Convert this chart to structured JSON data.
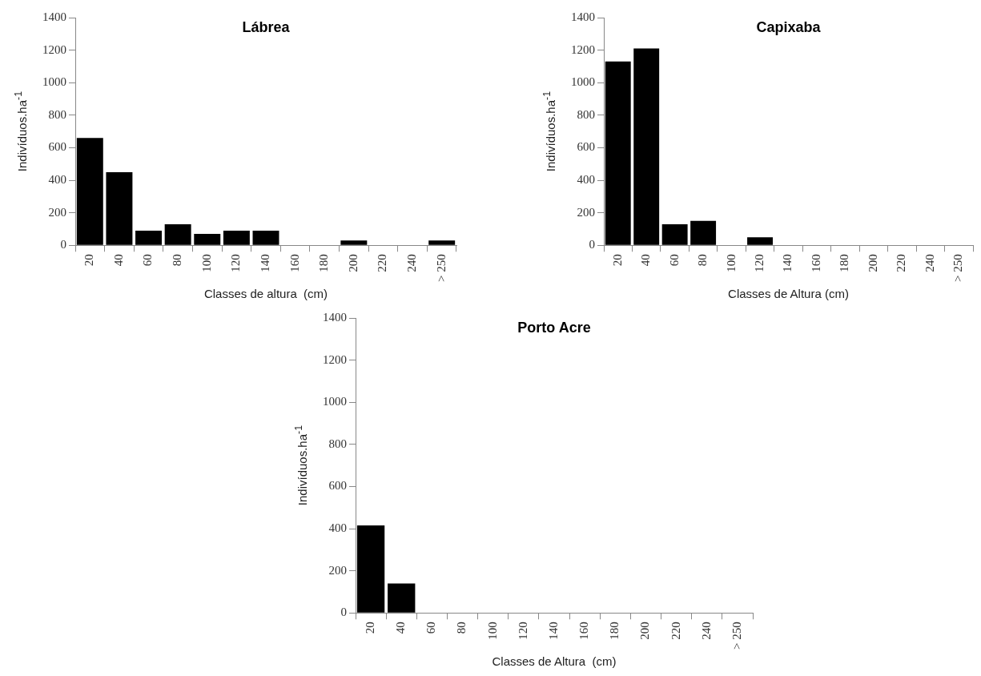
{
  "chart_data": [
    {
      "type": "bar",
      "title": "Lábrea",
      "xlabel": "Classes de altura  (cm)",
      "ylabel": "Indivíduos.ha$^{-1}$",
      "categories": [
        "20",
        "40",
        "60",
        "80",
        "100",
        "120",
        "140",
        "160",
        "180",
        "200",
        "220",
        "240",
        "> 250"
      ],
      "values": [
        660,
        450,
        90,
        130,
        70,
        90,
        90,
        0,
        0,
        30,
        0,
        0,
        30
      ],
      "color": "#000000",
      "ylim": [
        0,
        1400
      ],
      "yticks": [
        0,
        200,
        400,
        600,
        800,
        1000,
        1200,
        1400
      ]
    },
    {
      "type": "bar",
      "title": "Capixaba",
      "xlabel": "Classes de Altura (cm)",
      "ylabel": "Indivíduos.ha$^{-1}$",
      "categories": [
        "20",
        "40",
        "60",
        "80",
        "100",
        "120",
        "140",
        "160",
        "180",
        "200",
        "220",
        "240",
        "> 250"
      ],
      "values": [
        1130,
        1210,
        130,
        150,
        0,
        50,
        0,
        0,
        0,
        0,
        0,
        0,
        0
      ],
      "color": "#000000",
      "ylim": [
        0,
        1400
      ],
      "yticks": [
        0,
        200,
        400,
        600,
        800,
        1000,
        1200,
        1400
      ]
    },
    {
      "type": "bar",
      "title": "Porto Acre",
      "xlabel": "Classes de Altura  (cm)",
      "ylabel": "Indivíduos.ha$^{-1}$",
      "categories": [
        "20",
        "40",
        "60",
        "80",
        "100",
        "120",
        "140",
        "160",
        "180",
        "200",
        "220",
        "240",
        "> 250"
      ],
      "values": [
        415,
        140,
        0,
        0,
        0,
        0,
        0,
        0,
        0,
        0,
        0,
        0,
        0
      ],
      "color": "#000000",
      "ylim": [
        0,
        1400
      ],
      "yticks": [
        0,
        200,
        400,
        600,
        800,
        1000,
        1200,
        1400
      ]
    }
  ]
}
